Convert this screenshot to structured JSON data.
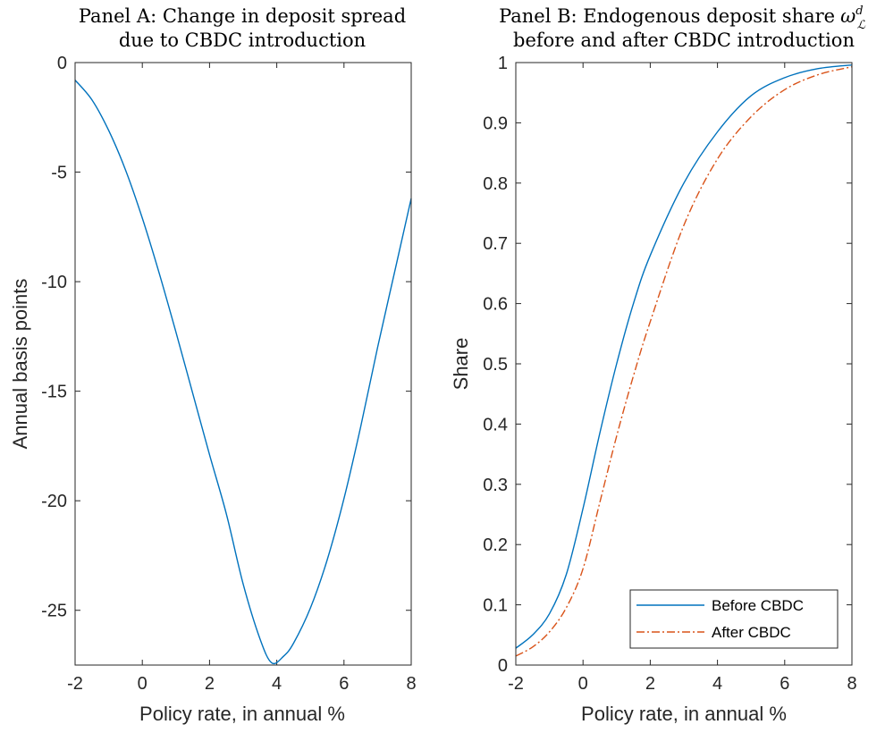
{
  "chart_data": [
    {
      "panel": "A",
      "type": "line",
      "title_line1": "Panel A: Change in deposit spread",
      "title_line2": "due to CBDC introduction",
      "xlabel": "Policy rate, in annual %",
      "ylabel": "Annual basis points",
      "xlim": [
        -2,
        8
      ],
      "ylim": [
        -27.5,
        0
      ],
      "xticks": [
        -2,
        0,
        2,
        4,
        6,
        8
      ],
      "yticks": [
        0,
        -5,
        -10,
        -15,
        -20,
        -25
      ],
      "grid": false,
      "series": [
        {
          "color": "#0072BD",
          "style": "solid",
          "x": [
            -2,
            -1.5,
            -1,
            -0.5,
            0,
            0.5,
            1,
            1.5,
            2,
            2.5,
            3,
            3.5,
            3.85,
            4.2,
            4.5,
            5,
            5.5,
            6,
            6.5,
            7,
            7.5,
            8
          ],
          "y": [
            -0.8,
            -1.7,
            -3.1,
            -4.9,
            -7.1,
            -9.6,
            -12.3,
            -15.1,
            -17.9,
            -20.6,
            -23.8,
            -26.3,
            -27.4,
            -27.1,
            -26.5,
            -24.9,
            -22.7,
            -19.9,
            -16.6,
            -13.0,
            -9.6,
            -6.2
          ]
        }
      ]
    },
    {
      "panel": "B",
      "type": "line",
      "title_line1": "Panel B: Endogenous deposit share",
      "title_symbol": "ω",
      "title_sup": "d",
      "title_sub": "ℒ",
      "title_line2": "before and after CBDC introduction",
      "xlabel": "Policy rate, in annual %",
      "ylabel": "Share",
      "xlim": [
        -2,
        8
      ],
      "ylim": [
        0,
        1
      ],
      "xticks": [
        -2,
        0,
        2,
        4,
        6,
        8
      ],
      "yticks": [
        0,
        0.1,
        0.2,
        0.3,
        0.4,
        0.5,
        0.6,
        0.7,
        0.8,
        0.9,
        1
      ],
      "grid": false,
      "legend_position": "bottom-right",
      "series": [
        {
          "name": "Before CBDC",
          "color": "#0072BD",
          "style": "solid",
          "x": [
            -2,
            -1.5,
            -1,
            -0.5,
            0,
            0.5,
            1,
            1.5,
            2,
            3,
            4,
            5,
            6,
            7,
            8
          ],
          "y": [
            0.028,
            0.05,
            0.085,
            0.15,
            0.26,
            0.385,
            0.5,
            0.6,
            0.68,
            0.8,
            0.885,
            0.945,
            0.975,
            0.99,
            0.996
          ]
        },
        {
          "name": "After CBDC",
          "color": "#D95319",
          "style": "dashdot",
          "x": [
            -2,
            -1.5,
            -1,
            -0.5,
            0,
            0.5,
            1,
            1.5,
            2,
            3,
            4,
            5,
            6,
            7,
            8
          ],
          "y": [
            0.015,
            0.03,
            0.055,
            0.095,
            0.16,
            0.27,
            0.38,
            0.48,
            0.57,
            0.73,
            0.84,
            0.91,
            0.955,
            0.98,
            0.993
          ]
        }
      ]
    }
  ]
}
